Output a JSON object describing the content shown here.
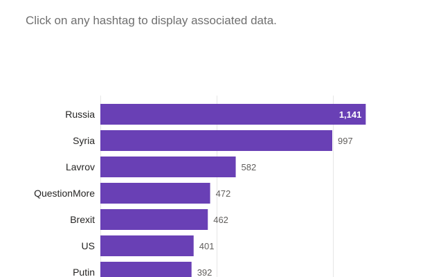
{
  "instruction": "Click on any hashtag to display associated data.",
  "chart_data": {
    "type": "bar",
    "orientation": "horizontal",
    "categories": [
      "Russia",
      "Syria",
      "Lavrov",
      "QuestionMore",
      "Brexit",
      "US",
      "Putin"
    ],
    "values": [
      1141,
      997,
      582,
      472,
      462,
      401,
      392
    ],
    "value_labels": [
      "1,141",
      "997",
      "582",
      "472",
      "462",
      "401",
      "392"
    ],
    "xlim": [
      0,
      1250
    ],
    "grid": true,
    "bar_color": "#6940b5"
  }
}
